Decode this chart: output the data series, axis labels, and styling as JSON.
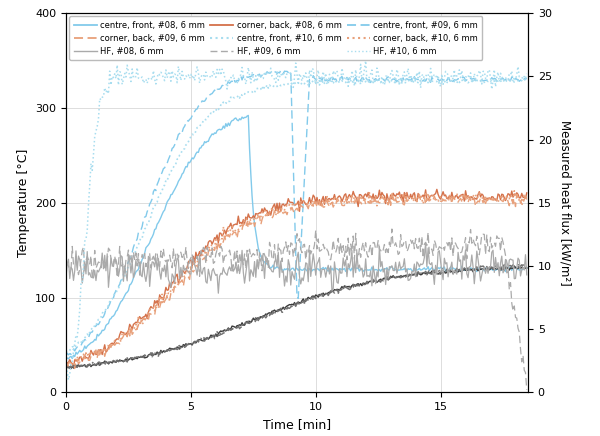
{
  "xlabel": "Time [min]",
  "ylabel_left": "Temperature [°C]",
  "ylabel_right": "Measured heat flux [kW/m²]",
  "xlim": [
    0,
    18.5
  ],
  "ylim_left": [
    0,
    400
  ],
  "ylim_right": [
    0,
    30
  ],
  "xticks": [
    0,
    5,
    10,
    15
  ],
  "yticks_left": [
    0,
    100,
    200,
    300,
    400
  ],
  "yticks_right": [
    0,
    5,
    10,
    15,
    20,
    25,
    30
  ],
  "col_blue": "#82CAEB",
  "col_blue_light": "#A8DDEF",
  "col_orange": "#D4714A",
  "col_orange_lt": "#E8A07A",
  "col_dark": "#3A3A3A",
  "col_dark2": "#707070",
  "col_gray": "#AAAAAA"
}
